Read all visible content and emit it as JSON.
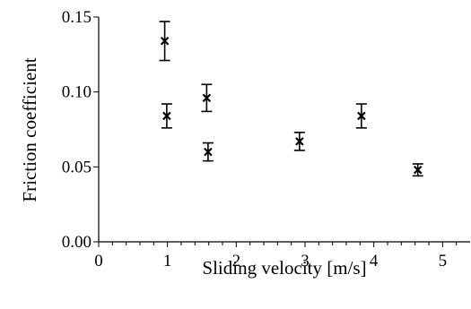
{
  "chart_data": {
    "type": "scatter",
    "title": "",
    "xlabel": "Sliding velocity [m/s]",
    "ylabel": "Friction coefficient",
    "xlim": [
      0,
      5.4
    ],
    "ylim": [
      0,
      0.15
    ],
    "x_ticks": [
      "0",
      "1",
      "2",
      "3",
      "4",
      "5"
    ],
    "y_ticks": [
      "0.00",
      "0.05",
      "0.10",
      "0.15"
    ],
    "grid": false,
    "marker": "x",
    "series": [
      {
        "points": [
          {
            "x": 0.96,
            "y": 0.134,
            "err": 0.013
          },
          {
            "x": 0.99,
            "y": 0.084,
            "err": 0.008
          },
          {
            "x": 1.57,
            "y": 0.096,
            "err": 0.009
          },
          {
            "x": 1.59,
            "y": 0.06,
            "err": 0.006
          },
          {
            "x": 2.92,
            "y": 0.067,
            "err": 0.006
          },
          {
            "x": 3.82,
            "y": 0.084,
            "err": 0.008
          },
          {
            "x": 4.64,
            "y": 0.048,
            "err": 0.004
          }
        ]
      }
    ]
  }
}
